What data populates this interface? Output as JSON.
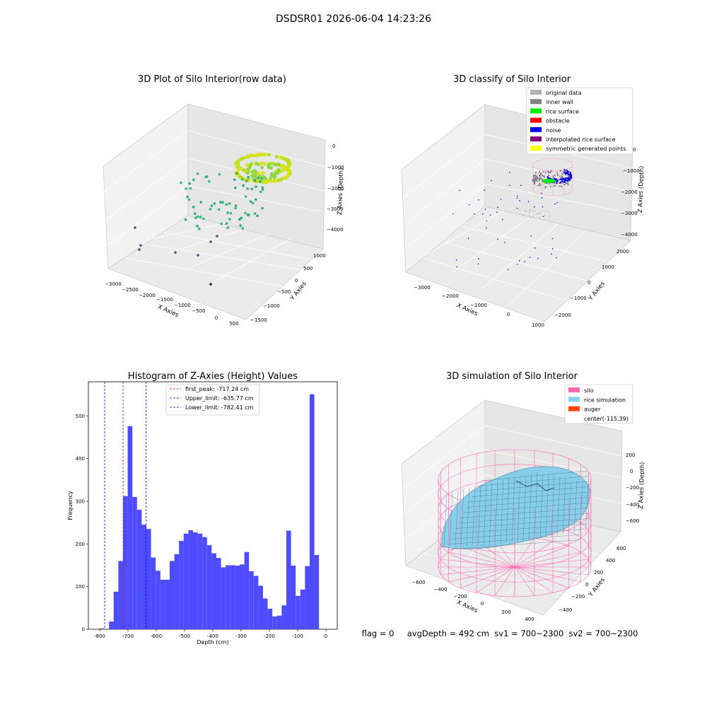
{
  "suptitle": "DSDSR01 2026-06-04 14:23:26",
  "status_line": "flag = 0     avgDepth = 492 cm  sv1 = 700~2300  sv2 = 700~2300",
  "colors": {
    "histogram_bar": "#4d4dff",
    "first_peak_line": "#ff0000",
    "limit_line": "#0000ff",
    "silo_wire": "#ff69b4",
    "rice_surface": "#87ceeb",
    "pane_left": "#f2f2f2",
    "pane_right": "#e6e6e6",
    "pane_floor": "#ebebeb"
  },
  "chart_data": [
    {
      "type": "scatter",
      "title": "3D Plot of Silo Interior(row data)",
      "xlabel": "X Axies",
      "ylabel": "Y Axies",
      "zlabel": "Z Axies (Depth)",
      "x_ticks": [
        "−3000",
        "−2500",
        "−2000",
        "−1500",
        "−1000",
        "−500",
        "0",
        "500"
      ],
      "y_ticks": [
        "1000",
        "500",
        "0",
        "−500",
        "−1000",
        "−1500"
      ],
      "z_ticks": [
        "0",
        "−1000",
        "−2000",
        "−3000",
        "−4000"
      ],
      "colormap": "viridis (by depth)",
      "groups": [
        {
          "name": "",
          "color": "#d8e219",
          "description": "dense ring of points near top of silo"
        },
        {
          "name": "",
          "color": "#2cab7a",
          "description": "scattered mid-depth points"
        },
        {
          "name": "",
          "color": "#3b528b",
          "description": "deep outlier points"
        }
      ]
    },
    {
      "type": "scatter",
      "title": "3D classify of Silo Interior",
      "xlabel": "X Axies",
      "ylabel": "Y Axies",
      "zlabel": "Z Axies (Depth)",
      "x_ticks": [
        "−3000",
        "−2000",
        "−1000",
        "0",
        "1000"
      ],
      "y_ticks": [
        "2000",
        "1000",
        "0",
        "−1000",
        "−2000"
      ],
      "z_ticks": [
        "0",
        "−1000",
        "−2000",
        "−3000",
        "−4000"
      ],
      "legend_position": "upper right",
      "legend": [
        {
          "label": "original data",
          "color": "#b3b3b3"
        },
        {
          "label": "inner wall",
          "color": "#808080"
        },
        {
          "label": "rice surface",
          "color": "#00ee00"
        },
        {
          "label": "obstacle",
          "color": "#ff0000"
        },
        {
          "label": "noise",
          "color": "#0000ee"
        },
        {
          "label": "interpolated rice surface",
          "color": "#800080"
        },
        {
          "label": "symmetric generated points",
          "color": "#ffff00"
        }
      ]
    },
    {
      "type": "bar",
      "title": "Histogram of Z-Axies (Height) Values",
      "xlabel": "Depth (cm)",
      "ylabel": "Frequency",
      "xlim": [
        -840,
        40
      ],
      "ylim": [
        0,
        580
      ],
      "x_ticks": [
        -800,
        -700,
        -600,
        -500,
        -400,
        -300,
        -200,
        -100,
        0
      ],
      "y_ticks": [
        0,
        100,
        200,
        300,
        400,
        500
      ],
      "bin_width": 16.5,
      "bin_starts": [
        -800,
        -783.5,
        -767,
        -750.5,
        -734,
        -717.5,
        -701,
        -684.5,
        -668,
        -651.5,
        -635,
        -618.5,
        -602,
        -585.5,
        -569,
        -552.5,
        -536,
        -519.5,
        -503,
        -486.5,
        -470,
        -453.5,
        -437,
        -420.5,
        -404,
        -387.5,
        -371,
        -354.5,
        -338,
        -321.5,
        -305,
        -288.5,
        -272,
        -255.5,
        -239,
        -222.5,
        -206,
        -189.5,
        -173,
        -156.5,
        -140,
        -123.5,
        -107,
        -90.5,
        -74,
        -57.5,
        -41,
        -24.5
      ],
      "values": [
        2,
        0,
        18,
        88,
        160,
        312,
        476,
        310,
        280,
        245,
        235,
        168,
        137,
        116,
        116,
        160,
        176,
        207,
        224,
        232,
        227,
        224,
        216,
        197,
        178,
        167,
        145,
        150,
        150,
        149,
        152,
        181,
        136,
        125,
        102,
        72,
        48,
        30,
        32,
        56,
        231,
        149,
        78,
        93,
        148,
        551,
        174,
        0
      ],
      "vlines": [
        {
          "label": "first_peak: -717.24 cm",
          "x": -717.24,
          "color": "#ff0000"
        },
        {
          "label": "Upper_limit: -635.77 cm",
          "x": -635.77,
          "color": "#0000ff"
        },
        {
          "label": "Lower_limit: -782.41 cm",
          "x": -782.41,
          "color": "#0000ff"
        }
      ],
      "legend_position": "upper center"
    },
    {
      "type": "surface",
      "title": "3D simulation of Silo Interior",
      "xlabel": "X Axies",
      "ylabel": "Y Axies",
      "zlabel": "Z Axies (Depth)",
      "x_ticks": [
        "−600",
        "−400",
        "−200",
        "0",
        "200",
        "400"
      ],
      "y_ticks": [
        "600",
        "400",
        "200",
        "0",
        "−200",
        "−400"
      ],
      "z_ticks": [
        "200",
        "0",
        "−200",
        "−400",
        "−600"
      ],
      "legend_position": "upper right",
      "legend": [
        {
          "label": "silo",
          "color": "#ff69b4"
        },
        {
          "label": "rice simulation",
          "color": "#87ceeb"
        },
        {
          "label": "auger",
          "color": "#ff4500"
        },
        {
          "label": "center(-115,39)",
          "color": ""
        }
      ]
    }
  ]
}
